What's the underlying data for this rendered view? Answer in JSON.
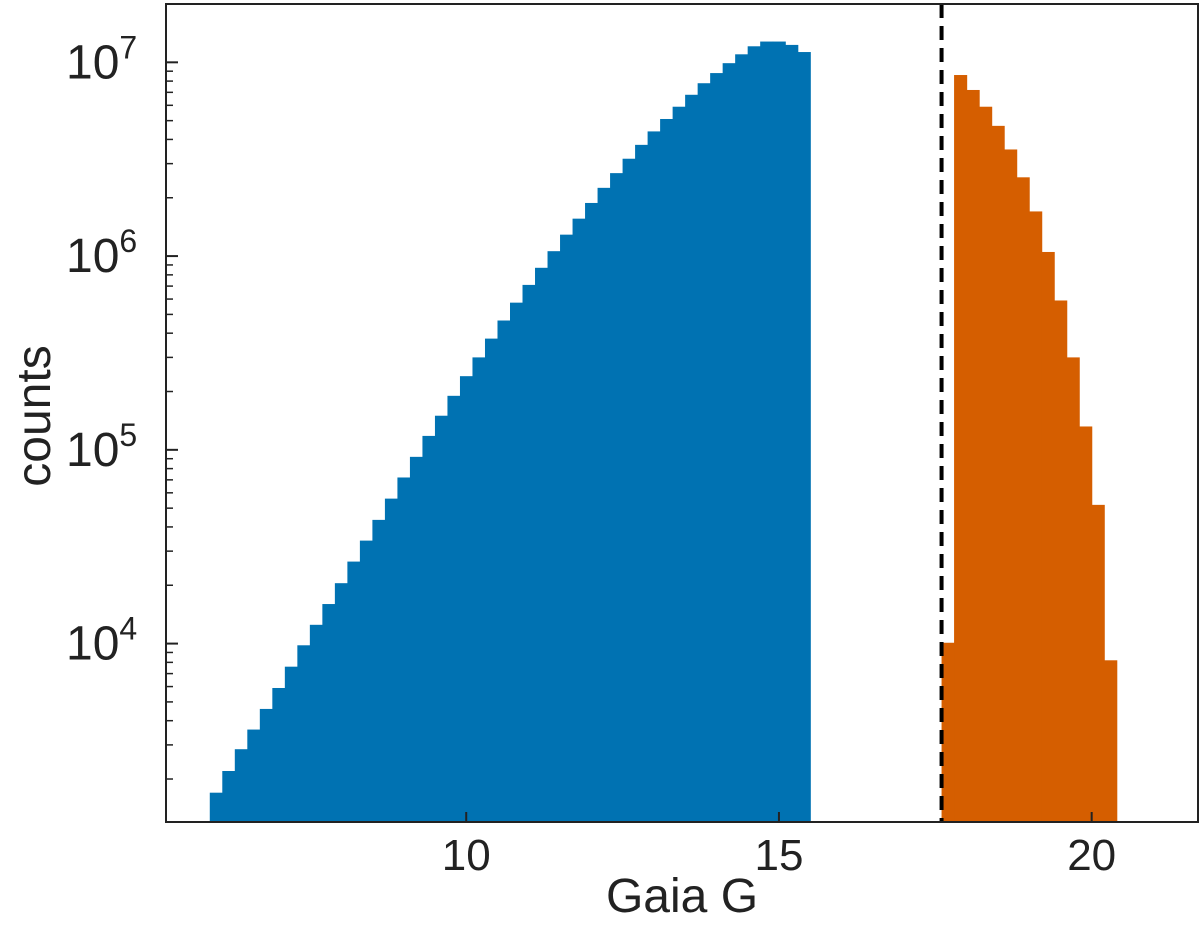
{
  "chart_data": {
    "type": "bar",
    "title": "",
    "xlabel": "Gaia G",
    "ylabel": "counts",
    "x_scale": "linear",
    "y_scale": "log",
    "xlim": [
      5.2,
      21.7
    ],
    "ylim": [
      1200,
      20000000
    ],
    "grid": false,
    "legend": "none",
    "xticks": [
      10,
      15,
      20
    ],
    "xtick_labels": [
      "10",
      "15",
      "20"
    ],
    "yticks": [
      10000,
      100000,
      1000000,
      10000000
    ],
    "ytick_labels": [
      {
        "base": "10",
        "exp": "4"
      },
      {
        "base": "10",
        "exp": "5"
      },
      {
        "base": "10",
        "exp": "6"
      },
      {
        "base": "10",
        "exp": "7"
      }
    ],
    "bin_edges_start": 5.9,
    "bin_width": 0.2,
    "cutoff": 17.6,
    "series": [
      {
        "color": "#0072B2",
        "bin_start": 5.9,
        "values": [
          1700,
          2200,
          2850,
          3600,
          4600,
          5900,
          7600,
          9800,
          12500,
          16000,
          20500,
          26500,
          34000,
          43500,
          56000,
          72000,
          92000,
          118000,
          150000,
          190000,
          240000,
          300000,
          375000,
          465000,
          575000,
          710000,
          870000,
          1060000,
          1290000,
          1560000,
          1880000,
          2250000,
          2680000,
          3180000,
          3750000,
          4400000,
          5100000,
          5900000,
          6800000,
          7800000,
          8800000,
          9900000,
          11000000,
          12100000,
          12800000,
          12800000,
          12300000,
          11300000
        ]
      },
      {
        "color": "#D55E00",
        "bin_start": 17.6,
        "values": [
          10100,
          8600000,
          7200000,
          5900000,
          4700000,
          3550000,
          2550000,
          1700000,
          1050000,
          590000,
          300000,
          132000,
          52000,
          8200
        ]
      }
    ],
    "vline": {
      "x": 17.6,
      "style": "dashed",
      "color": "#000000"
    }
  }
}
